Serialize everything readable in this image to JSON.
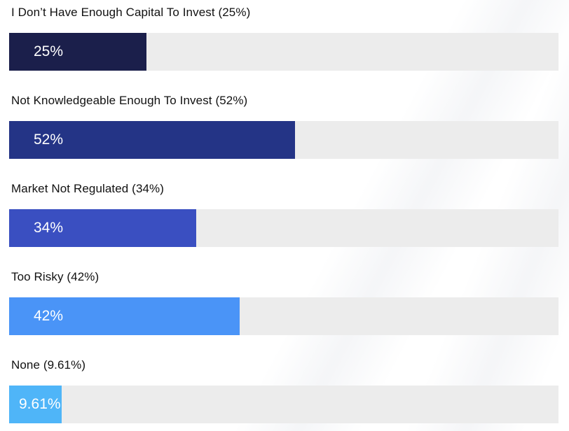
{
  "chart_data": {
    "type": "bar",
    "orientation": "horizontal",
    "categories": [
      "I Don’t Have Enough Capital To Invest (25%)",
      "Not Knowledgeable Enough To Invest (52%)",
      "Market Not Regulated (34%)",
      "Too Risky (42%)",
      "None (9.61%)"
    ],
    "values": [
      25,
      52,
      34,
      42,
      9.61
    ],
    "value_labels": [
      "25%",
      "52%",
      "34%",
      "42%",
      "9.61%"
    ],
    "xlim": [
      0,
      100
    ],
    "bar_colors": [
      "#1b1f4b",
      "#243486",
      "#3a4fc1",
      "#4a94f7",
      "#4fb5f8"
    ],
    "track_color": "#ececec",
    "title": "",
    "xlabel": "",
    "ylabel": "",
    "grid": false
  }
}
